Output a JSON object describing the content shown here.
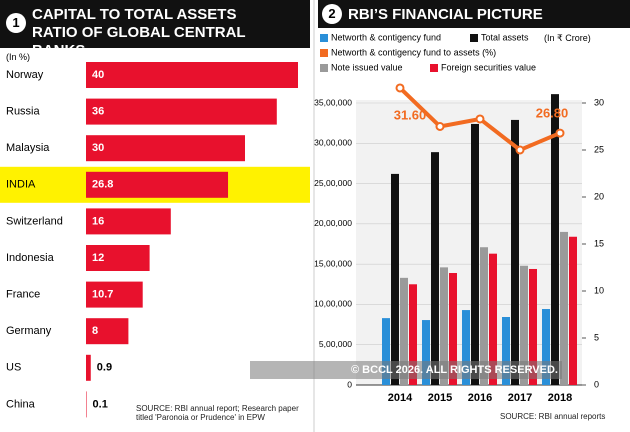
{
  "chart_data": [
    {
      "type": "bar",
      "orientation": "horizontal",
      "badge": "1",
      "title": "CAPITAL TO TOTAL ASSETS RATIO OF GLOBAL CENTRAL BANKS",
      "unit_label": "(In %)",
      "categories": [
        "Norway",
        "Russia",
        "Malaysia",
        "INDIA",
        "Switzerland",
        "Indonesia",
        "France",
        "Germany",
        "US",
        "China"
      ],
      "values": [
        40,
        36,
        30,
        26.8,
        16,
        12,
        10.7,
        8,
        0.9,
        0.1
      ],
      "color": "#e8112d",
      "highlight_index": 3,
      "highlight_color": "#fff200",
      "source": "SOURCE: RBI annual report; Research paper titled 'Paronoia or Prudence' in EPW"
    },
    {
      "type": "combo",
      "badge": "2",
      "title": "RBI’S FINANCIAL PICTURE",
      "unit_label": "(In ₹ Crore)",
      "categories": [
        "2014",
        "2015",
        "2016",
        "2017",
        "2018"
      ],
      "series": [
        {
          "name": "Networth & contigency fund",
          "type": "bar",
          "color": "#2a8fd8",
          "values": [
            830000,
            806000,
            930000,
            844000,
            943000
          ]
        },
        {
          "name": "Total assets",
          "type": "bar",
          "color": "#111111",
          "values": [
            2620000,
            2890000,
            3240000,
            3290000,
            3610000
          ]
        },
        {
          "name": "Networth & contigency fund to assets (%)",
          "type": "line",
          "axis": "y2",
          "color": "#f26b21",
          "values": [
            31.6,
            27.5,
            28.3,
            25,
            26.8
          ],
          "value_labels": [
            "31.60",
            null,
            null,
            null,
            "26.80"
          ]
        },
        {
          "name": "Note issued value",
          "type": "bar",
          "color": "#9a9a9a",
          "values": [
            1330000,
            1460000,
            1710000,
            1480000,
            1900000
          ]
        },
        {
          "name": "Foreign securities value",
          "type": "bar",
          "color": "#e8112d",
          "values": [
            1250000,
            1390000,
            1630000,
            1440000,
            1840000
          ]
        }
      ],
      "ylim": [
        0,
        3500000
      ],
      "yticks": [
        0,
        {
          "value": 500000,
          "label": "5,00,000"
        },
        {
          "value": 1000000,
          "label": "10,00,000"
        },
        {
          "value": 1500000,
          "label": "15,00,000"
        },
        {
          "value": 2000000,
          "label": "20,00,000"
        },
        {
          "value": 2500000,
          "label": "25,00,000"
        },
        {
          "value": 3000000,
          "label": "30,00,000"
        },
        {
          "value": 3500000,
          "label": "35,00,000"
        }
      ],
      "y2lim": [
        0,
        30
      ],
      "y2ticks": [
        0,
        5,
        10,
        15,
        20,
        25,
        30
      ],
      "grid": true,
      "source": "SOURCE: RBI annual reports",
      "watermark": "© BCCL 2026. ALL RIGHTS RESERVED."
    }
  ]
}
